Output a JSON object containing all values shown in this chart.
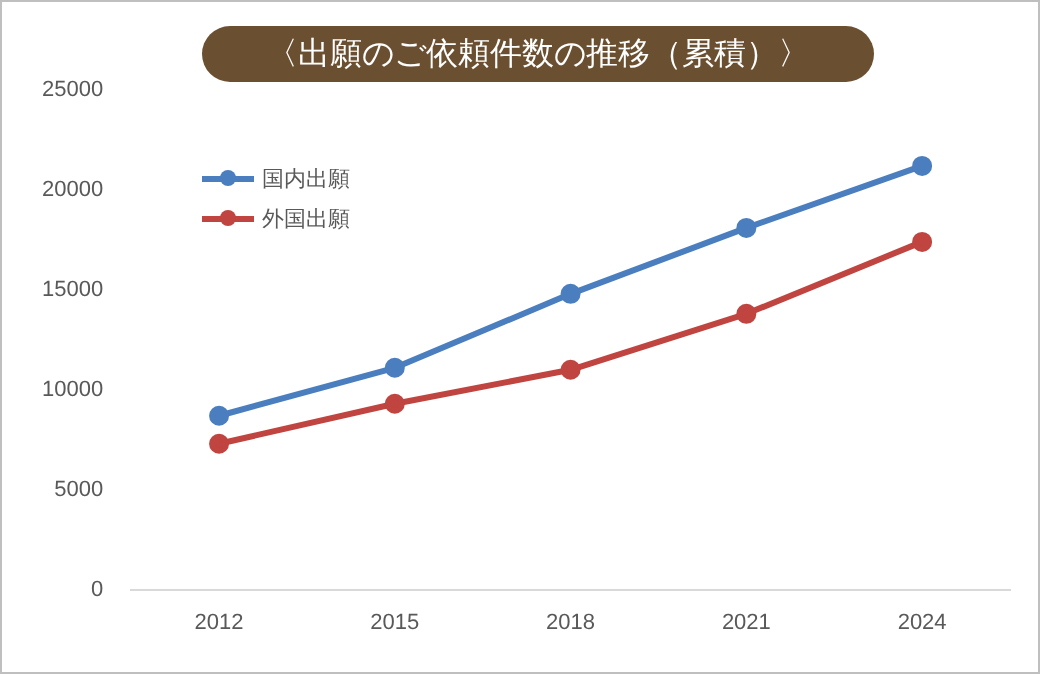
{
  "chart_data": {
    "type": "line",
    "title": "〈出願のご依頼件数の推移（累積）〉",
    "categories": [
      "2012",
      "2015",
      "2018",
      "2021",
      "2024"
    ],
    "series": [
      {
        "name": "国内出願",
        "color": "#4a7ebf",
        "values": [
          8700,
          11100,
          14800,
          18100,
          21200
        ]
      },
      {
        "name": "外国出願",
        "color": "#c0443f",
        "values": [
          7300,
          9300,
          11000,
          13800,
          17400
        ]
      }
    ],
    "ylim": [
      0,
      25000
    ],
    "yticks": [
      0,
      5000,
      10000,
      15000,
      20000,
      25000
    ],
    "grid": false,
    "legend": "top left",
    "marker": "circle",
    "line_style": "solid"
  }
}
